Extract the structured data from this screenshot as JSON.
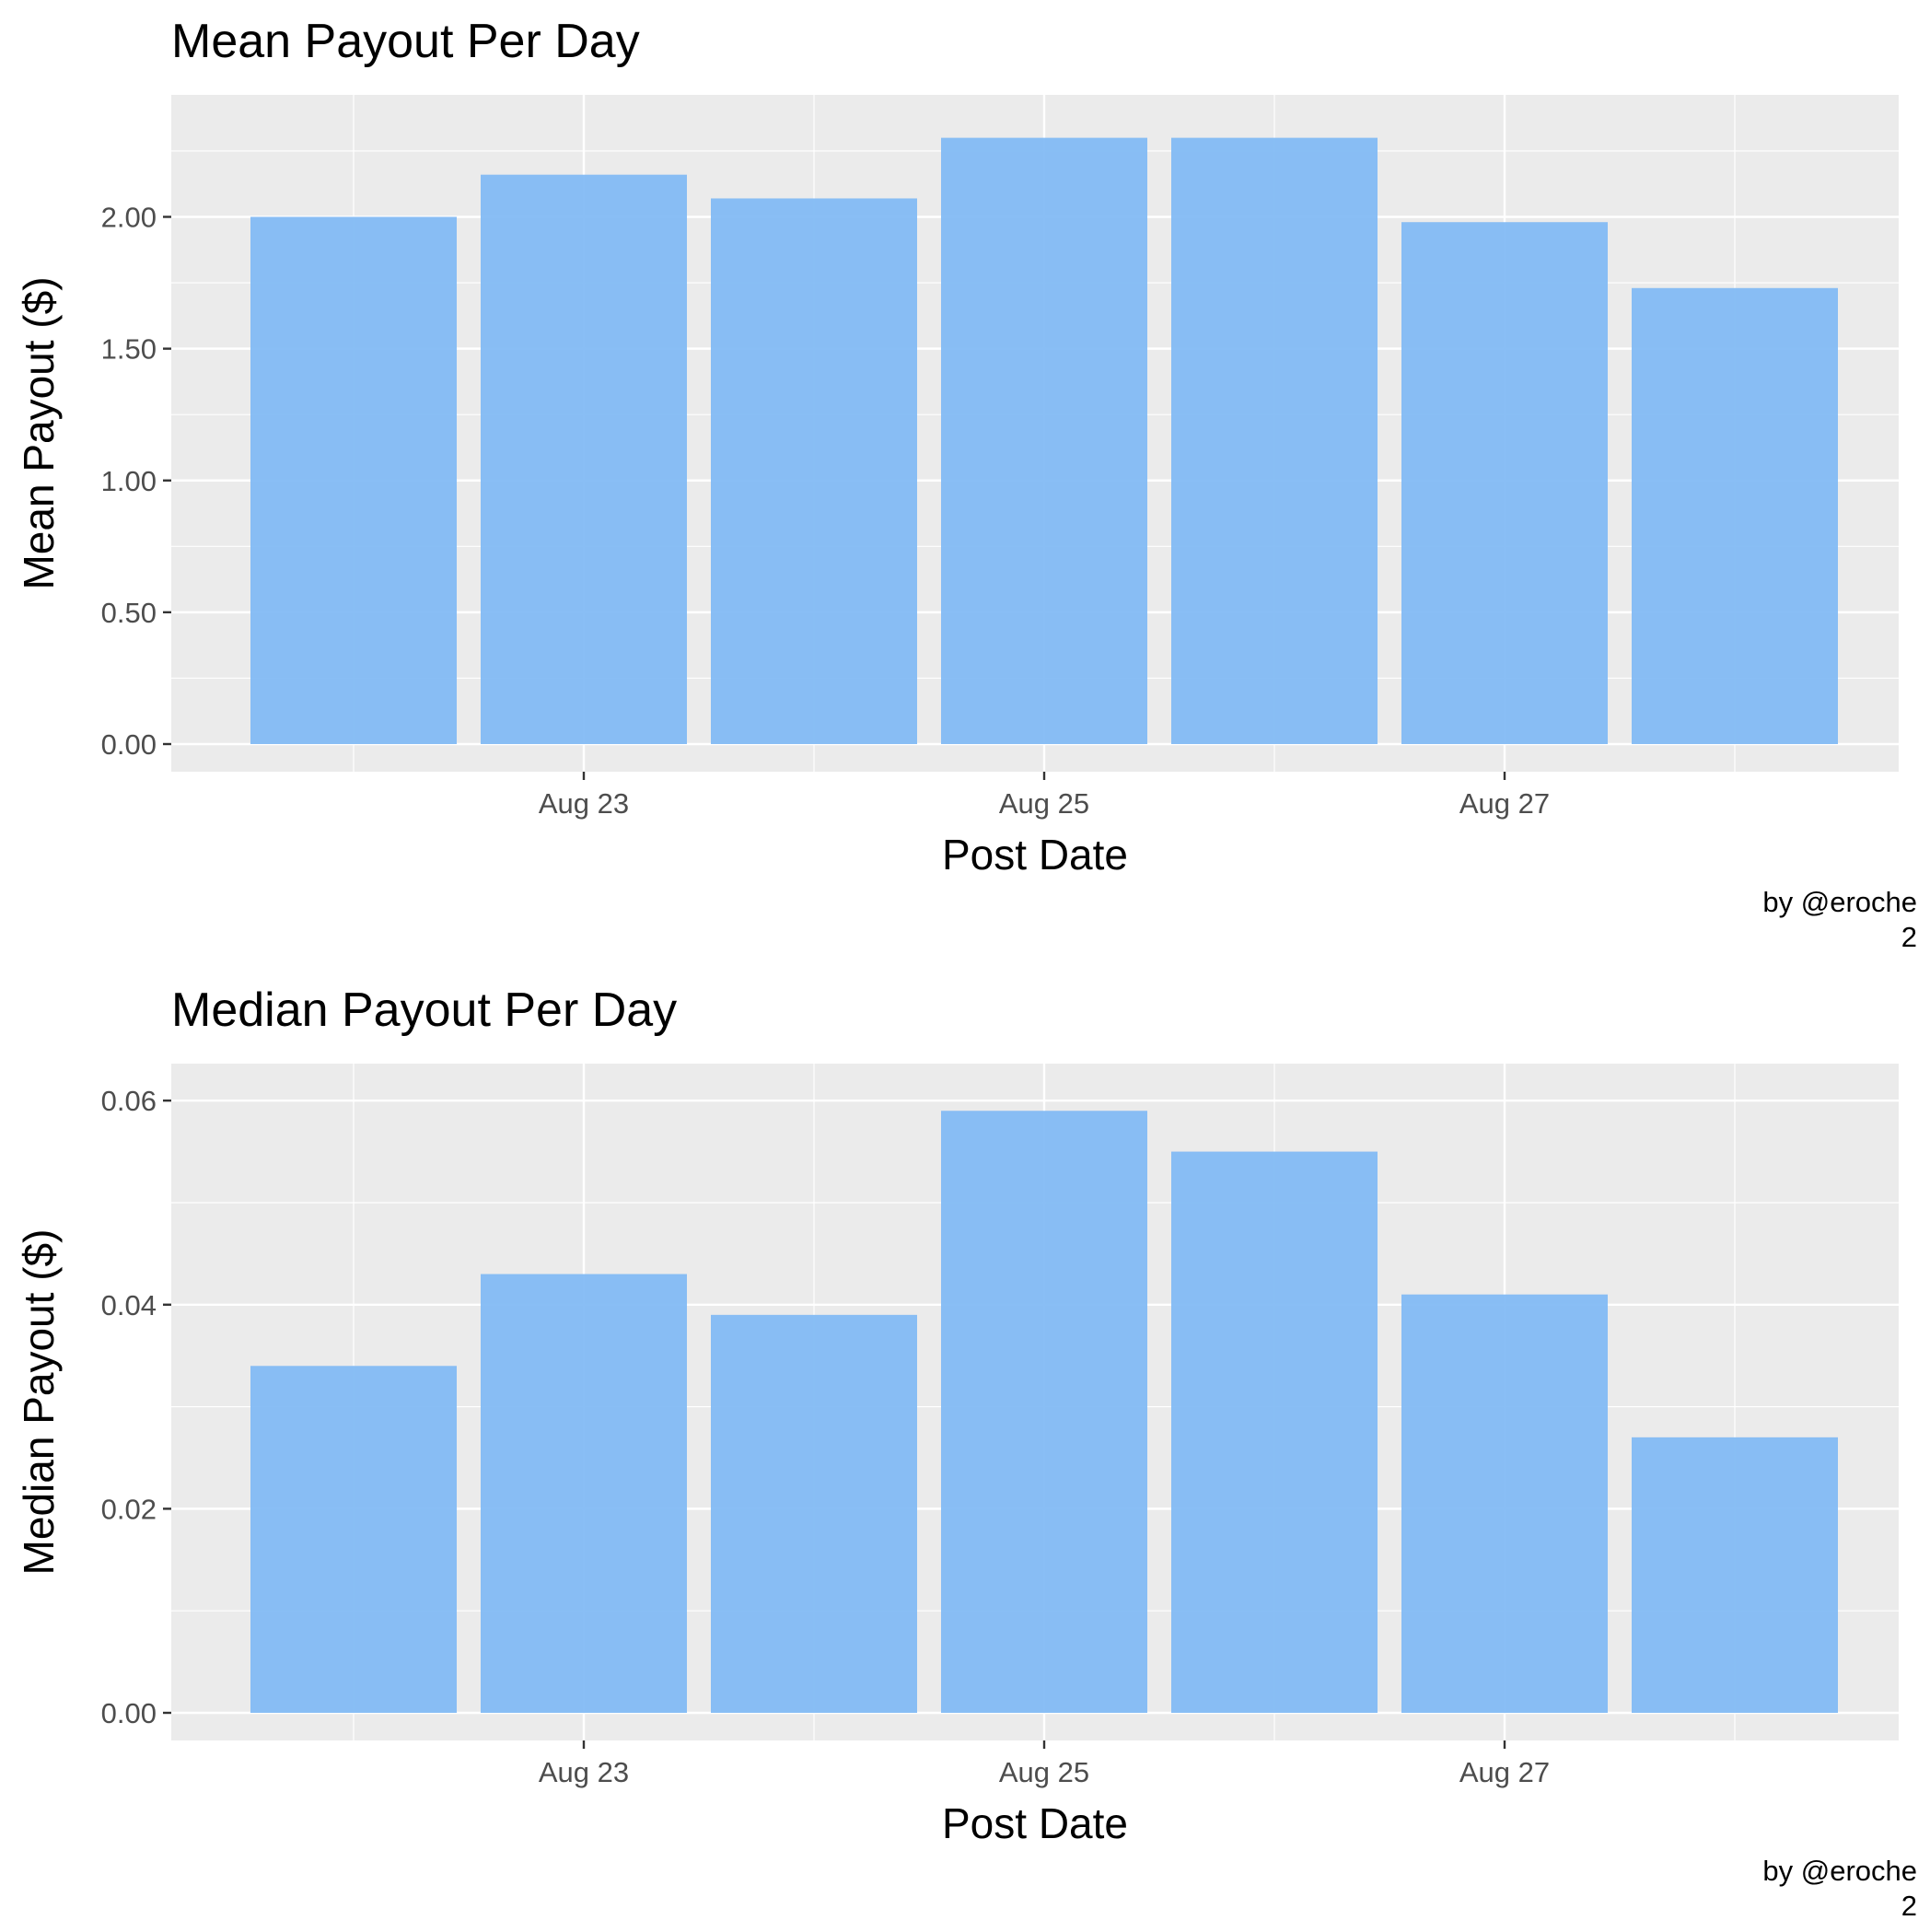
{
  "bar_color": "#7fb8f4",
  "chart_data": [
    {
      "type": "bar",
      "title": "Mean Payout Per Day",
      "xlabel": "Post Date",
      "ylabel": "Mean Payout ($)",
      "caption_lines": [
        "by @eroche",
        "2"
      ],
      "x": [
        "2017-08-22",
        "2017-08-23",
        "2017-08-24",
        "2017-08-25",
        "2017-08-26",
        "2017-08-27",
        "2017-08-28"
      ],
      "values": [
        2.0,
        2.16,
        2.07,
        2.3,
        2.3,
        1.98,
        1.73
      ],
      "ylim": [
        0,
        2.4
      ],
      "y_ticks": [
        0,
        0.5,
        1.0,
        1.5,
        2.0
      ],
      "y_tick_labels": [
        "0.00",
        "0.50",
        "1.00",
        "1.50",
        "2.00"
      ],
      "x_tick_labels": [
        "Aug 23",
        "Aug 25",
        "Aug 27"
      ],
      "x_tick_dates": [
        "2017-08-23",
        "2017-08-25",
        "2017-08-27"
      ],
      "grid": true,
      "legend": "none"
    },
    {
      "type": "bar",
      "title": "Median Payout Per Day",
      "xlabel": "Post Date",
      "ylabel": "Median Payout ($)",
      "caption_lines": [
        "by @eroche",
        "2"
      ],
      "x": [
        "2017-08-22",
        "2017-08-23",
        "2017-08-24",
        "2017-08-25",
        "2017-08-26",
        "2017-08-27",
        "2017-08-28"
      ],
      "values": [
        0.034,
        0.043,
        0.039,
        0.059,
        0.055,
        0.041,
        0.027
      ],
      "ylim": [
        0,
        0.062
      ],
      "y_ticks": [
        0,
        0.02,
        0.04,
        0.06
      ],
      "y_tick_labels": [
        "0.00",
        "0.02",
        "0.04",
        "0.06"
      ],
      "x_tick_labels": [
        "Aug 23",
        "Aug 25",
        "Aug 27"
      ],
      "x_tick_dates": [
        "2017-08-23",
        "2017-08-25",
        "2017-08-27"
      ],
      "grid": true,
      "legend": "none"
    }
  ]
}
